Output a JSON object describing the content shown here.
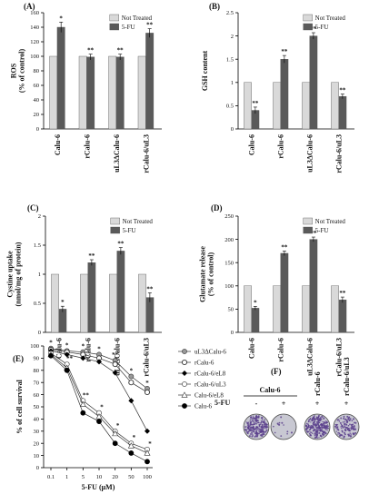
{
  "colors": {
    "not_treated": "#d9d9d9",
    "fu": "#5a5a5a",
    "axis": "#000000",
    "plate_bg": "#c8c8d2",
    "colony": "#5a3f8c"
  },
  "chart_data": [
    {
      "panel": "(A)",
      "type": "bar",
      "categories": [
        "Calu-6",
        "rCalu-6",
        "uL3ΔCalu-6",
        "rCalu-6/uL3"
      ],
      "series": [
        {
          "name": "Not Treated",
          "values": [
            100,
            100,
            100,
            100
          ],
          "errors": [
            0,
            0,
            0,
            0
          ]
        },
        {
          "name": "5-FU",
          "values": [
            140,
            99,
            99,
            132
          ],
          "errors": [
            7,
            4,
            4,
            6
          ]
        }
      ],
      "significance": [
        "*",
        "**",
        "**",
        "**"
      ],
      "ylabel": [
        "ROS",
        "(% of control)"
      ],
      "ylim": [
        0,
        160
      ],
      "yticks": [
        "0",
        "20",
        "40",
        "60",
        "80",
        "100",
        "120",
        "140",
        "160"
      ],
      "legend": "top-right"
    },
    {
      "panel": "(B)",
      "type": "bar",
      "categories": [
        "Calu-6",
        "rCalu-6",
        "uL3ΔCalu-6",
        "rCalu-6/uL3"
      ],
      "series": [
        {
          "name": "Not Treated",
          "values": [
            1,
            1,
            1,
            1
          ],
          "errors": [
            0,
            0,
            0,
            0
          ]
        },
        {
          "name": "5-FU",
          "values": [
            0.4,
            1.5,
            2.0,
            0.7
          ],
          "errors": [
            0.07,
            0.08,
            0.07,
            0.05
          ]
        }
      ],
      "significance": [
        "**",
        "**",
        "**",
        "**"
      ],
      "ylabel": [
        "GSH content"
      ],
      "ylim": [
        0,
        2.5
      ],
      "yticks": [
        "0",
        "0.5",
        "1",
        "1.5",
        "2",
        "2.5"
      ],
      "legend": "top-right"
    },
    {
      "panel": "(C)",
      "type": "bar",
      "categories": [
        "Calu-6",
        "rCalu-6",
        "uL3ΔCalu-6",
        "rCalu-6/uL3"
      ],
      "series": [
        {
          "name": "Not Treated",
          "values": [
            1,
            1,
            1,
            1
          ],
          "errors": [
            0,
            0,
            0,
            0
          ]
        },
        {
          "name": "5-FU",
          "values": [
            0.4,
            1.2,
            1.4,
            0.6
          ],
          "errors": [
            0.05,
            0.05,
            0.06,
            0.08
          ]
        }
      ],
      "significance": [
        "*",
        "**",
        "**",
        "**"
      ],
      "ylabel": [
        "Cystine uptake",
        "(nmol/mg of protein)"
      ],
      "ylim": [
        0,
        2
      ],
      "yticks": [
        "0",
        "0.5",
        "1",
        "1.5",
        "2"
      ],
      "legend": "top-right"
    },
    {
      "panel": "(D)",
      "type": "bar",
      "categories": [
        "Calu-6",
        "rCalu-6",
        "uL3ΔCalu-6",
        "rCalu-6/uL3"
      ],
      "series": [
        {
          "name": "Not Treated",
          "values": [
            100,
            100,
            100,
            100
          ],
          "errors": [
            0,
            0,
            0,
            0
          ]
        },
        {
          "name": "5-FU",
          "values": [
            52,
            170,
            200,
            70
          ],
          "errors": [
            4,
            5,
            5,
            6
          ]
        }
      ],
      "significance": [
        "*",
        "**",
        "**",
        "**"
      ],
      "ylabel": [
        "Glutamate release",
        "(% of control)"
      ],
      "ylim": [
        0,
        250
      ],
      "yticks": [
        "0",
        "50",
        "100",
        "150",
        "200",
        "250"
      ],
      "legend": "top-right"
    },
    {
      "panel": "(E)",
      "type": "line",
      "x": [
        0.1,
        1,
        5,
        10,
        20,
        50,
        100
      ],
      "xticks": [
        "0.1",
        "1",
        "5",
        "10",
        "20",
        "50",
        "100"
      ],
      "series": [
        {
          "name": "uL3ΔCalu-6",
          "marker": "circle-grey",
          "values": [
            98,
            96,
            95,
            93,
            88,
            75,
            65
          ]
        },
        {
          "name": "rCalu-6",
          "marker": "circle-open",
          "values": [
            97,
            95,
            93,
            90,
            85,
            70,
            62
          ]
        },
        {
          "name": "rCalu-6/eL8",
          "marker": "diamond-filled",
          "values": [
            96,
            93,
            90,
            87,
            78,
            55,
            30
          ]
        },
        {
          "name": "rCalu-6/uL3",
          "marker": "circle-open-thin",
          "values": [
            94,
            85,
            55,
            45,
            30,
            20,
            15
          ]
        },
        {
          "name": "Calu-6/eL8",
          "marker": "triangle-open",
          "values": [
            93,
            82,
            52,
            42,
            28,
            18,
            12
          ]
        },
        {
          "name": "Calu-6",
          "marker": "circle-filled",
          "values": [
            92,
            80,
            45,
            38,
            20,
            12,
            5
          ]
        }
      ],
      "significance_rows": [
        [
          "*",
          "*",
          "*",
          "*",
          "**",
          "*",
          "*"
        ],
        [
          "",
          "**",
          "**",
          "*",
          "*",
          "*",
          "*"
        ]
      ],
      "ylabel": "% of cell survival",
      "xlabel": "5-FU (μM)",
      "ylim": [
        0,
        100
      ],
      "yticks": [
        "0",
        "10",
        "20",
        "30",
        "40",
        "50",
        "60",
        "70",
        "80",
        "90",
        "100"
      ],
      "legend": "right"
    }
  ],
  "panel_f": {
    "label": "(F)",
    "group_title": "Calu-6",
    "row_label": "5-FU",
    "columns": [
      {
        "top_label": "",
        "sign": "-",
        "density": 0.85
      },
      {
        "top_label": "",
        "sign": "+",
        "density": 0.05
      },
      {
        "top_label": "rCalu-6",
        "sign": "+",
        "density": 0.9
      },
      {
        "top_label": "rCalu-6/uL3",
        "sign": "+",
        "density": 0.45
      }
    ]
  }
}
